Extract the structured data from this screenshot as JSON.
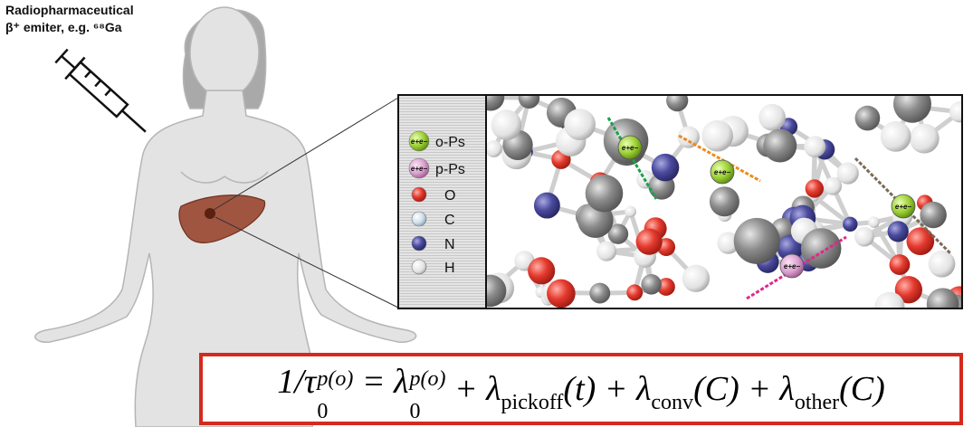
{
  "caption": {
    "title": "Radiopharmaceutical",
    "emitter": "β⁺ emiter, e.g. ⁶⁸Ga"
  },
  "legend": [
    {
      "symbol": "e+e−",
      "label": "o-Ps"
    },
    {
      "symbol": "e+e−",
      "label": "p-Ps"
    },
    {
      "label": "O"
    },
    {
      "label": "C"
    },
    {
      "label": "N"
    },
    {
      "label": "H"
    }
  ],
  "particles": [
    "e+e−",
    "e+e−",
    "e+e−",
    "e+e−"
  ],
  "formula": [
    {
      "base": "1/τ",
      "sub": "0",
      "sup": "p(o)"
    },
    {
      "base": " = λ",
      "sub": "0",
      "sup": "p(o)"
    },
    {
      "base": " + λ",
      "sub": "pickoff",
      "tail": "(t)"
    },
    {
      "base": " + λ",
      "sub": "conv",
      "tail": "(C)"
    },
    {
      "base": " + λ",
      "sub": "other",
      "tail": "(C)"
    }
  ]
}
